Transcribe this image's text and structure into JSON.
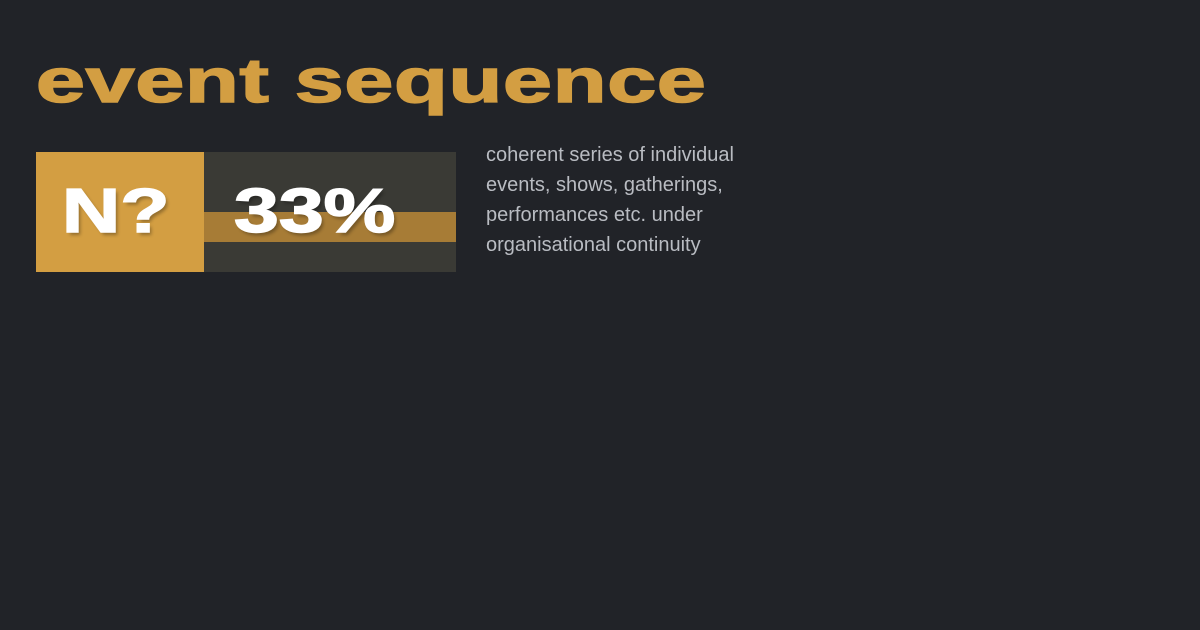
{
  "title": "event sequence",
  "badge": {
    "label": "N?",
    "percent_text": "33%",
    "percent": 33
  },
  "description": "coherent series of individual events, shows, gatherings, performances etc. under organisational continuity",
  "colors": {
    "background": "#212328",
    "accent": "#d39e42",
    "panel": "#3a3a35",
    "band": "#a77c36",
    "text": "#b9bcc2"
  }
}
